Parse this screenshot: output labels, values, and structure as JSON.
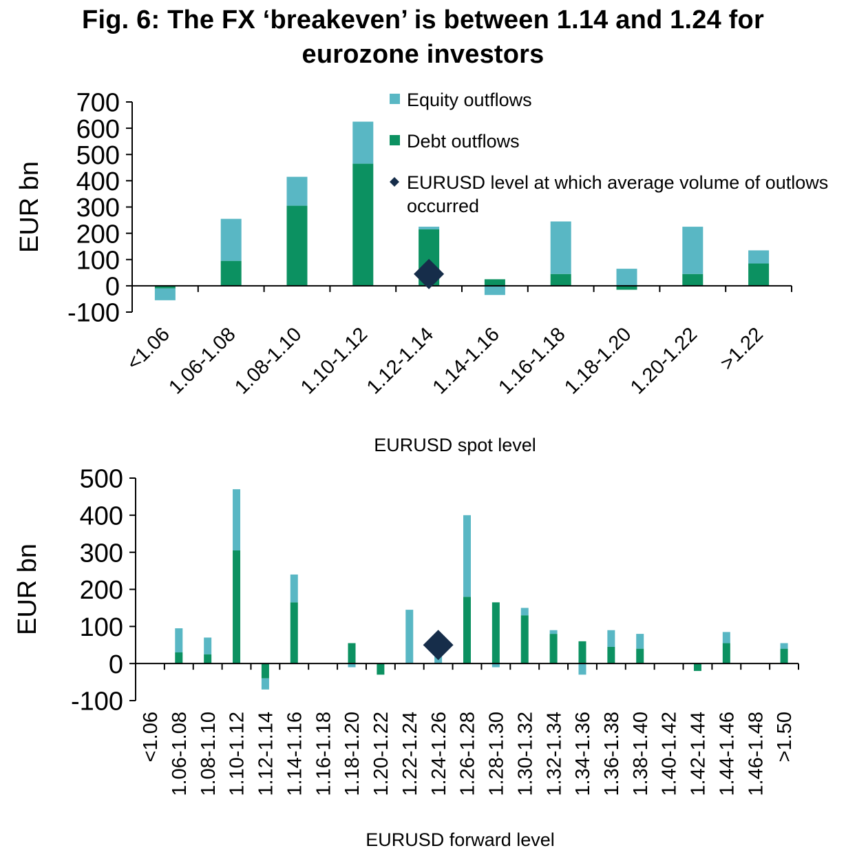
{
  "figure": {
    "title_line1": "Fig. 6: The FX ‘breakeven’ is between 1.14 and 1.24 for",
    "title_line2": "eurozone investors"
  },
  "colors": {
    "equity": "#59b7c4",
    "debt": "#0c9161",
    "marker": "#162d4a",
    "axis": "#000000"
  },
  "chart_data": [
    {
      "type": "bar",
      "stacked": true,
      "title": "",
      "xlabel": "EURUSD spot level",
      "ylabel": "EUR bn",
      "ylim": [
        -100,
        700
      ],
      "yticks": [
        -100,
        0,
        100,
        200,
        300,
        400,
        500,
        600,
        700
      ],
      "grid": false,
      "legend_position": "top-right",
      "categories": [
        "<1.06",
        "1.06-1.08",
        "1.08-1.10",
        "1.10-1.12",
        "1.12-1.14",
        "1.14-1.16",
        "1.16-1.18",
        "1.18-1.20",
        "1.20-1.22",
        ">1.22"
      ],
      "series": [
        {
          "name": "Equity outflows",
          "values": [
            -45,
            160,
            110,
            160,
            10,
            -35,
            200,
            65,
            180,
            50
          ]
        },
        {
          "name": "Debt outflows",
          "values": [
            -10,
            95,
            305,
            465,
            215,
            25,
            45,
            -15,
            45,
            85
          ]
        }
      ],
      "marker": {
        "name": "EURUSD level at which average volume of outlows occurred",
        "category": "1.12-1.14",
        "value": 45
      }
    },
    {
      "type": "bar",
      "stacked": true,
      "title": "",
      "xlabel": "EURUSD forward level",
      "ylabel": "EUR bn",
      "ylim": [
        -100,
        500
      ],
      "yticks": [
        -100,
        0,
        100,
        200,
        300,
        400,
        500
      ],
      "grid": false,
      "categories": [
        "<1.06",
        "1.06-1.08",
        "1.08-1.10",
        "1.10-1.12",
        "1.12-1.14",
        "1.14-1.16",
        "1.16-1.18",
        "1.18-1.20",
        "1.20-1.22",
        "1.22-1.24",
        "1.24-1.26",
        "1.26-1.28",
        "1.28-1.30",
        "1.30-1.32",
        "1.32-1.34",
        "1.34-1.36",
        "1.36-1.38",
        "1.38-1.40",
        "1.40-1.42",
        "1.42-1.44",
        "1.44-1.46",
        "1.46-1.48",
        ">1.50"
      ],
      "series": [
        {
          "name": "Equity outflows",
          "values": [
            0,
            65,
            45,
            165,
            -30,
            75,
            0,
            -10,
            0,
            145,
            20,
            220,
            -10,
            20,
            10,
            -30,
            45,
            40,
            0,
            0,
            30,
            0,
            15
          ]
        },
        {
          "name": "Debt outflows",
          "values": [
            0,
            30,
            25,
            305,
            -40,
            165,
            0,
            55,
            -30,
            0,
            0,
            180,
            165,
            130,
            80,
            60,
            45,
            40,
            0,
            -20,
            55,
            0,
            40
          ]
        }
      ],
      "marker": {
        "category": "1.24-1.26",
        "value": 50
      }
    }
  ]
}
